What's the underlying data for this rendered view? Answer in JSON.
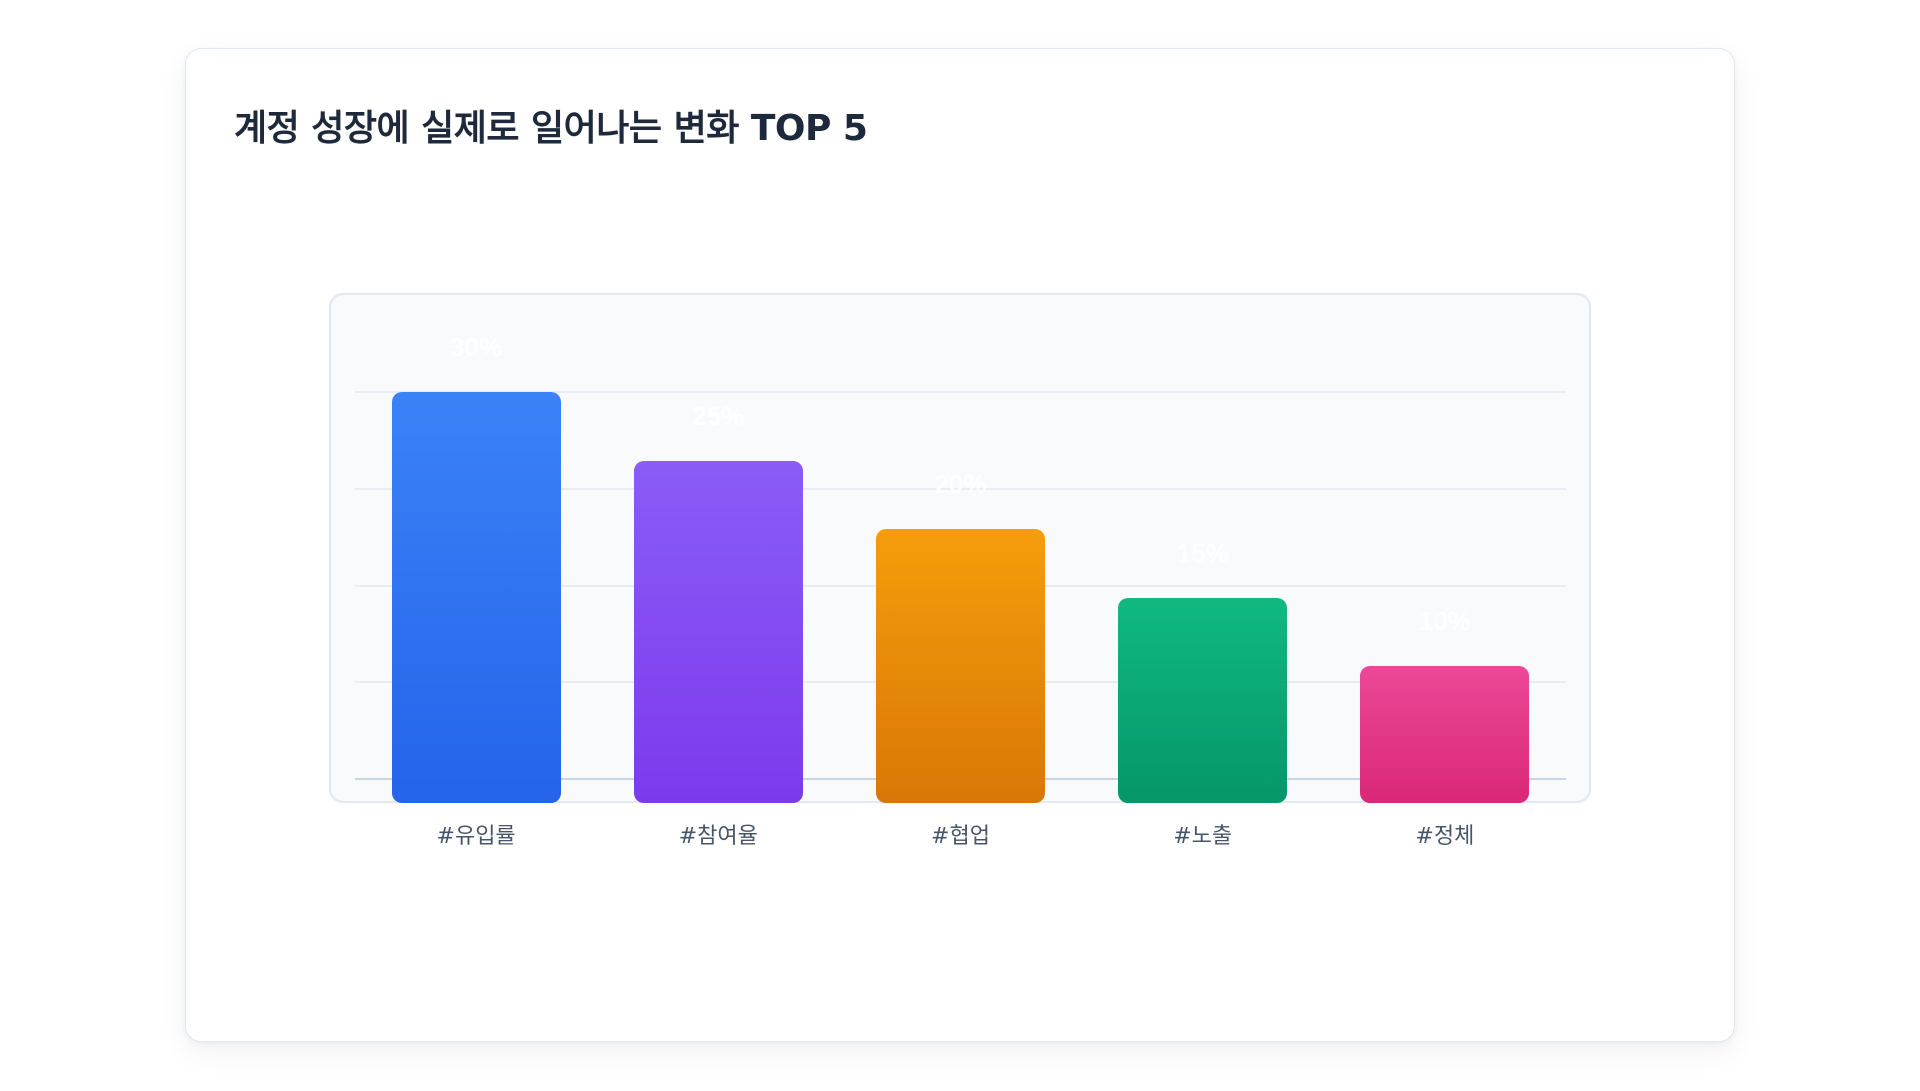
{
  "title": "계정 성장에 실제로 일어나는 변화 TOP 5",
  "chart_data": {
    "type": "bar",
    "title": "계정 성장에 실제로 일어나는 변화 TOP 5",
    "categories": [
      "#유입률",
      "#참여율",
      "#협업",
      "#노출",
      "#정체"
    ],
    "values": [
      30,
      25,
      20,
      15,
      10
    ],
    "value_labels": [
      "30%",
      "25%",
      "20%",
      "15%",
      "10%"
    ],
    "colors": [
      {
        "top": "#3b82f6",
        "bottom": "#2563eb"
      },
      {
        "top": "#8b5cf6",
        "bottom": "#7c3aed"
      },
      {
        "top": "#f59e0b",
        "bottom": "#d97706"
      },
      {
        "top": "#10b981",
        "bottom": "#059669"
      },
      {
        "top": "#ec4899",
        "bottom": "#db2777"
      }
    ],
    "xlabel": "",
    "ylabel": "",
    "unit": "%",
    "ylim": [
      0,
      30
    ],
    "grid": true,
    "legend": "none"
  }
}
